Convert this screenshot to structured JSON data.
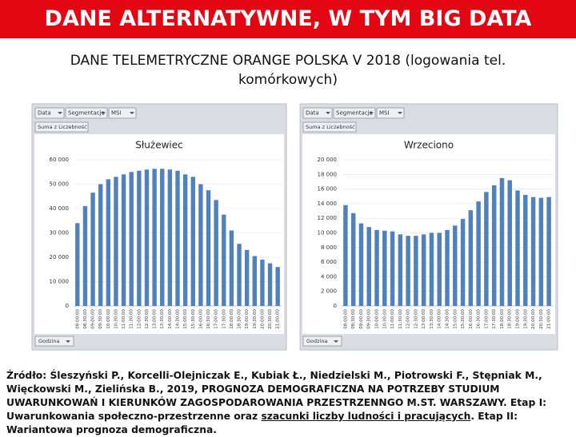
{
  "title": "DANE ALTERNATYWNE, W TYM BIG DATA",
  "subtitle": "DANE TELEMETRYCZNE ORANGE POLSKA V 2018 (logowania tel. komórkowych)",
  "source": {
    "text": "Źródło: Śleszyński P., Korcelli-Olejniczak E., Kubiak Ł., Niedzielski M., Piotrowski F., Stępniak M., Więckowski M., Zielińska B., 2019, PROGNOZA DEMOGRAFICZNA NA POTRZEBY STUDIUM UWARUNKOWAŃ I KIERUNKÓW ZAGOSPODAROWANIA PRZESTRZENNGO M.ST. WARSZAWY. Etap I: Uwarunkowania społeczno-przestrzenne oraz ",
    "link": "szacunki liczby ludności i pracujących",
    "after": ". Etap II: Wariantowa prognoza demograficzna."
  },
  "chart_data": [
    {
      "type": "bar",
      "title": "Służewiec",
      "filter_buttons": [
        "Data",
        "Segmentacja",
        "MSI"
      ],
      "value_field": "Suma z Liczebność",
      "axis_field": "Godzina",
      "categories": [
        "08:00:00",
        "08:30:00",
        "09:00:00",
        "09:30:00",
        "10:00:00",
        "10:30:00",
        "11:00:00",
        "11:30:00",
        "12:00:00",
        "12:30:00",
        "13:00:00",
        "13:30:00",
        "14:00:00",
        "14:30:00",
        "15:00:00",
        "15:30:00",
        "16:00:00",
        "16:30:00",
        "17:00:00",
        "17:30:00",
        "18:00:00",
        "18:30:00",
        "19:00:00",
        "19:30:00",
        "20:00:00",
        "20:30:00",
        "21:00:00"
      ],
      "values": [
        34000,
        41000,
        46500,
        50000,
        52000,
        53000,
        54000,
        55000,
        55500,
        56000,
        56300,
        56300,
        56000,
        55500,
        54000,
        53000,
        50000,
        47500,
        43500,
        37500,
        31000,
        25500,
        23000,
        20500,
        19000,
        17500,
        16000
      ],
      "color": "#4f81bd",
      "ylim": [
        0,
        60000
      ],
      "grid": true,
      "yticks": [
        0,
        {
          "value": 10000,
          "label": "10 000"
        },
        {
          "value": 20000,
          "label": "20 000"
        },
        {
          "value": 30000,
          "label": "30 000"
        },
        {
          "value": 40000,
          "label": "40 000"
        },
        {
          "value": 50000,
          "label": "50 000"
        },
        {
          "value": 60000,
          "label": "60 000"
        }
      ]
    },
    {
      "type": "bar",
      "title": "Wrzeciono",
      "filter_buttons": [
        "Data",
        "Segmentacja",
        "MSI"
      ],
      "value_field": "Suma z Liczebność",
      "axis_field": "Godzina",
      "categories": [
        "08:00:00",
        "08:30:00",
        "09:00:00",
        "09:30:00",
        "10:00:00",
        "10:30:00",
        "11:00:00",
        "11:30:00",
        "12:00:00",
        "12:30:00",
        "13:00:00",
        "13:30:00",
        "14:00:00",
        "14:30:00",
        "15:00:00",
        "15:30:00",
        "16:00:00",
        "16:30:00",
        "17:00:00",
        "17:30:00",
        "18:00:00",
        "18:30:00",
        "19:00:00",
        "19:30:00",
        "20:00:00",
        "20:30:00",
        "21:00:00"
      ],
      "values": [
        13800,
        12700,
        11300,
        10800,
        10400,
        10300,
        10200,
        9800,
        9600,
        9600,
        9800,
        10000,
        10000,
        10400,
        11000,
        11900,
        13100,
        14300,
        15600,
        16500,
        17500,
        17200,
        15800,
        15200,
        14900,
        14800,
        14900
      ],
      "color": "#4f81bd",
      "ylim": [
        0,
        20000
      ],
      "grid": true,
      "yticks": [
        0,
        {
          "value": 2000,
          "label": "2 000"
        },
        {
          "value": 4000,
          "label": "4 000"
        },
        {
          "value": 6000,
          "label": "6 000"
        },
        {
          "value": 8000,
          "label": "8 000"
        },
        {
          "value": 10000,
          "label": "10 000"
        },
        {
          "value": 12000,
          "label": "12 000"
        },
        {
          "value": 14000,
          "label": "14 000"
        },
        {
          "value": 16000,
          "label": "16 000"
        },
        {
          "value": 18000,
          "label": "18 000"
        },
        {
          "value": 20000,
          "label": "20 000"
        }
      ]
    }
  ]
}
